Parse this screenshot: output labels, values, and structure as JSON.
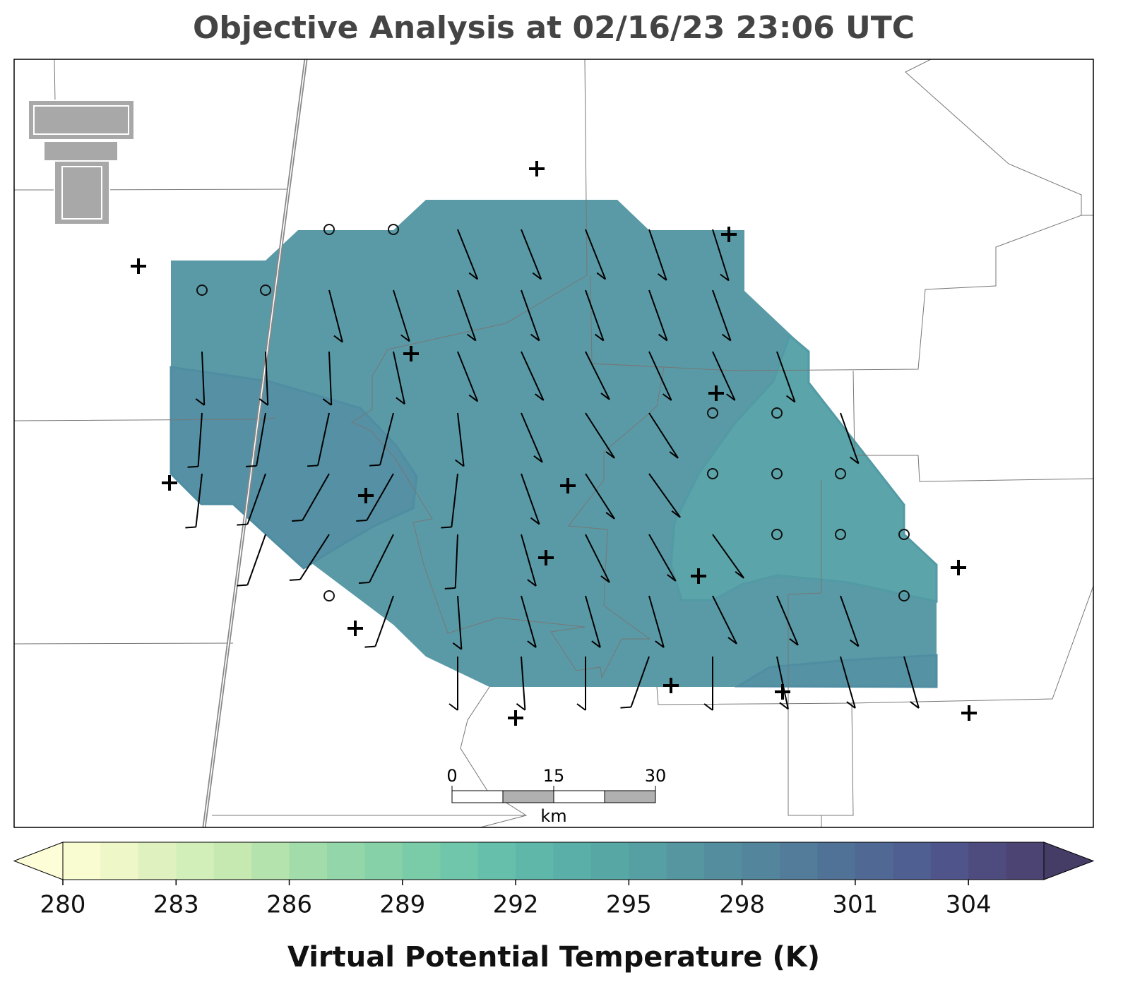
{
  "title": "Objective Analysis at 02/16/23 23:06 UTC",
  "scale_bar": {
    "ticks": [
      0,
      15,
      30
    ],
    "unit": "km"
  },
  "colorbar": {
    "label": "Virtual Potential Temperature (K)",
    "lim": [
      280,
      306
    ],
    "ticks": [
      280,
      283,
      286,
      289,
      292,
      295,
      298,
      301,
      304
    ],
    "colors": [
      "#f9fbd0",
      "#eef7c8",
      "#dff1bf",
      "#d3efb9",
      "#c6e9b2",
      "#b5e3ad",
      "#a3dcab",
      "#93d6a9",
      "#86d1a8",
      "#7acca9",
      "#6fc6aa",
      "#66bfaa",
      "#5fb7a9",
      "#5aafa8",
      "#57a7a5",
      "#569fa3",
      "#5596a1",
      "#548d9e",
      "#53859c",
      "#527c99",
      "#507297",
      "#4f6994",
      "#505f91",
      "#4f558a",
      "#4e4c7f",
      "#4c4574"
    ],
    "extend_colors": [
      "#fdfdd8",
      "#463d66"
    ]
  }
}
